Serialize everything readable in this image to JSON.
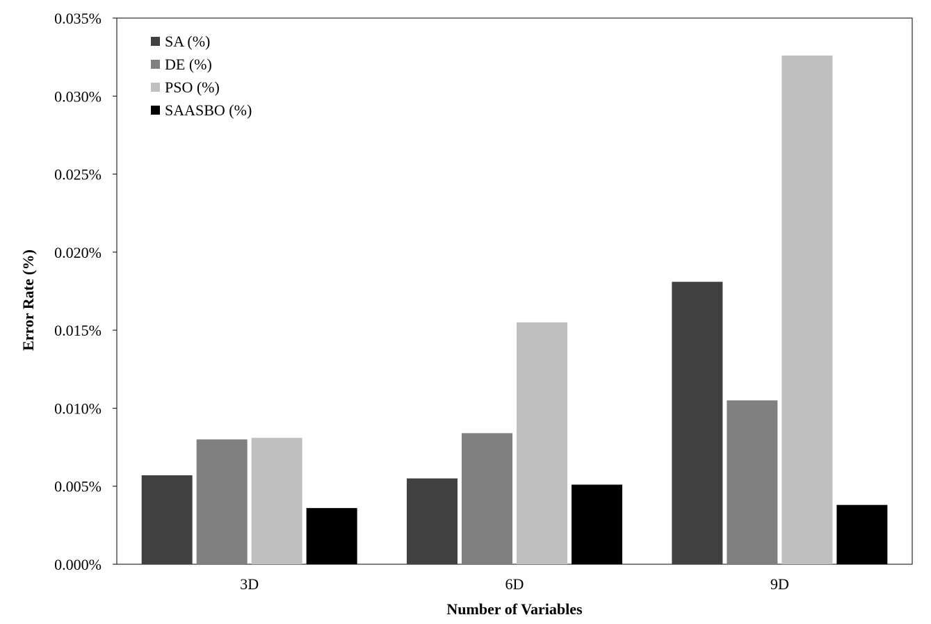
{
  "chart_data": {
    "type": "bar",
    "title": "",
    "xlabel": "Number of Variables",
    "ylabel": "Error Rate (%)",
    "categories": [
      "3D",
      "6D",
      "9D"
    ],
    "ylim": [
      0,
      0.035
    ],
    "yticks": [
      "0.000%",
      "0.005%",
      "0.010%",
      "0.015%",
      "0.020%",
      "0.025%",
      "0.030%",
      "0.035%"
    ],
    "legend_position": "top-left",
    "grid": false,
    "series": [
      {
        "name": "SA (%)",
        "color": "#404040",
        "values": [
          0.0057,
          0.0055,
          0.0181
        ]
      },
      {
        "name": "DE (%)",
        "color": "#808080",
        "values": [
          0.008,
          0.0084,
          0.0105
        ]
      },
      {
        "name": "PSO (%)",
        "color": "#bfbfbf",
        "values": [
          0.0081,
          0.0155,
          0.0326
        ]
      },
      {
        "name": "SAASBO (%)",
        "color": "#000000",
        "values": [
          0.0036,
          0.0051,
          0.0038
        ]
      }
    ]
  }
}
